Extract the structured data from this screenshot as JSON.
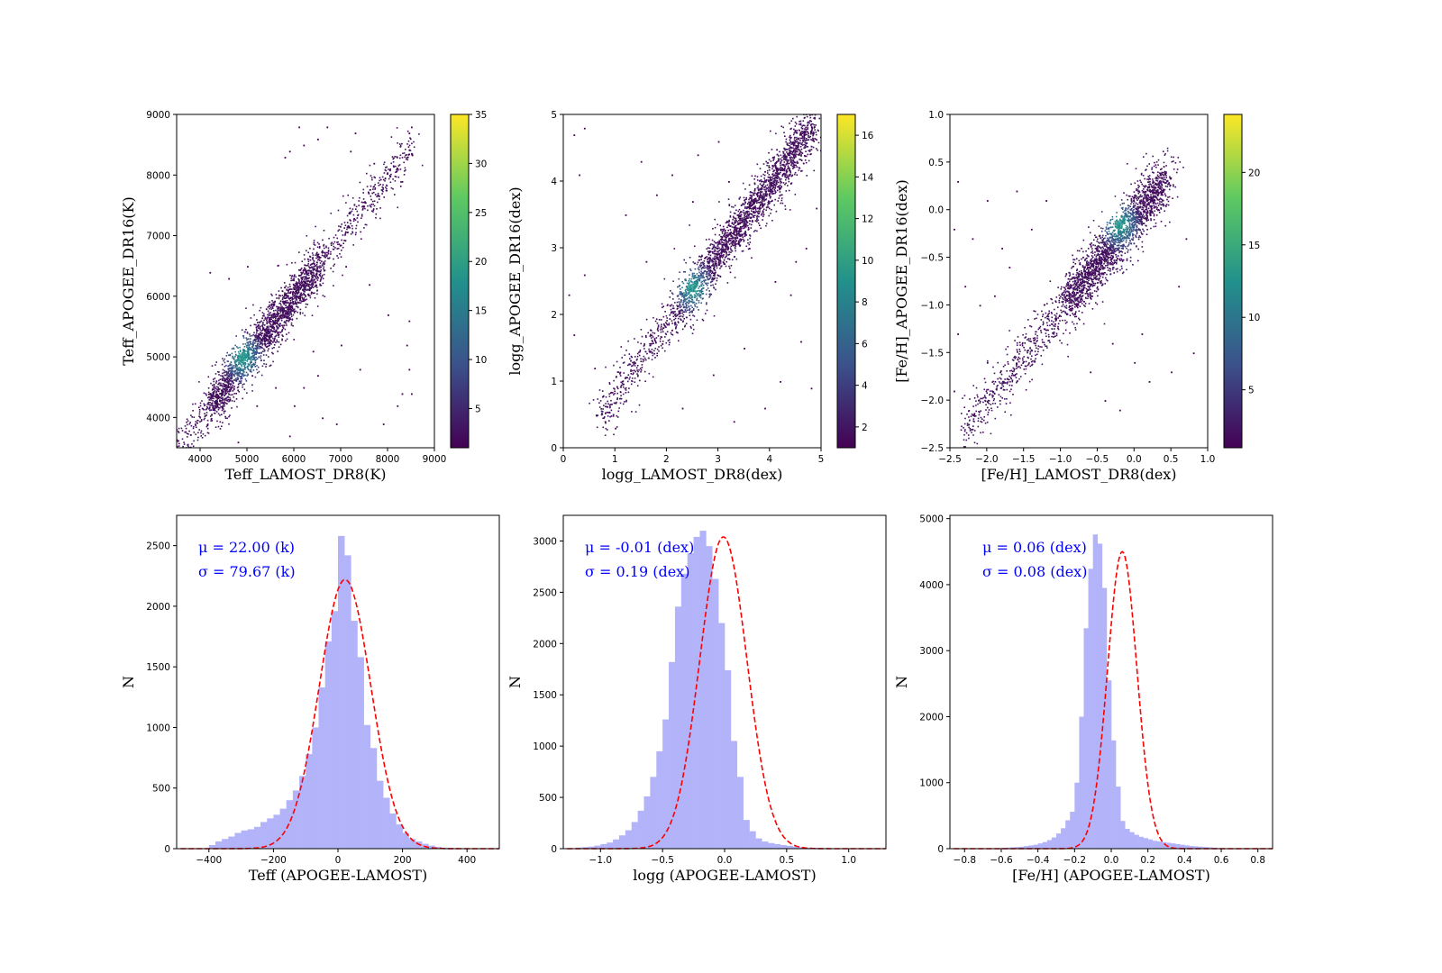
{
  "chart_data": [
    {
      "type": "scatter",
      "panel": "density",
      "xlabel": "Teff_LAMOST_DR8(K)",
      "ylabel": "Teff_APOGEE_DR16(K)",
      "xlim": [
        3500,
        9000
      ],
      "ylim": [
        3500,
        9000
      ],
      "xticks": [
        4000,
        5000,
        6000,
        7000,
        8000,
        9000
      ],
      "xtick_labels": [
        "4000",
        "5000",
        "6000",
        "7000",
        "8000",
        "9000"
      ],
      "yticks": [
        4000,
        5000,
        6000,
        7000,
        8000,
        9000
      ],
      "ytick_labels": [
        "4000",
        "5000",
        "6000",
        "7000",
        "8000",
        "9000"
      ],
      "colorbar": {
        "range": [
          1,
          35
        ],
        "ticks": [
          5,
          10,
          15,
          20,
          25,
          30,
          35
        ],
        "tick_labels": [
          "5",
          "10",
          "15",
          "20",
          "25",
          "30",
          "35"
        ],
        "colormap": "viridis"
      },
      "trend": {
        "x": [
          3500,
          8500
        ],
        "y": [
          3500,
          8500
        ],
        "spread": 180
      },
      "dense_core": {
        "x": [
          4200,
          6600
        ],
        "peak": [
          4900,
          5000
        ]
      },
      "outliers": [
        [
          5800,
          8300
        ],
        [
          5900,
          8400
        ],
        [
          6200,
          8500
        ],
        [
          6500,
          8600
        ],
        [
          7200,
          8400
        ],
        [
          7700,
          8200
        ],
        [
          8400,
          8300
        ],
        [
          8300,
          7900
        ],
        [
          8450,
          8700
        ],
        [
          8500,
          8800
        ],
        [
          6700,
          8800
        ],
        [
          6100,
          8800
        ],
        [
          7300,
          8700
        ],
        [
          8450,
          5600
        ],
        [
          8400,
          5200
        ],
        [
          8450,
          4800
        ],
        [
          8300,
          4400
        ],
        [
          8500,
          4400
        ],
        [
          4200,
          6400
        ],
        [
          4600,
          6300
        ],
        [
          5100,
          4700
        ],
        [
          5600,
          4500
        ],
        [
          6000,
          4200
        ],
        [
          6500,
          4700
        ],
        [
          7000,
          5200
        ],
        [
          6400,
          5100
        ],
        [
          7400,
          4800
        ],
        [
          6900,
          3900
        ],
        [
          5900,
          3700
        ],
        [
          4800,
          3600
        ],
        [
          7900,
          3900
        ],
        [
          8200,
          4200
        ],
        [
          8000,
          5700
        ],
        [
          7600,
          6200
        ],
        [
          7100,
          6500
        ],
        [
          5000,
          6500
        ],
        [
          5400,
          5800
        ],
        [
          6200,
          4500
        ],
        [
          6600,
          4000
        ],
        [
          5200,
          4200
        ]
      ]
    },
    {
      "type": "scatter",
      "panel": "density",
      "xlabel": "logg_LAMOST_DR8(dex)",
      "ylabel": "logg_APOGEE_DR16(dex)",
      "xlim": [
        0,
        5
      ],
      "ylim": [
        0,
        5
      ],
      "xticks": [
        0,
        1,
        2,
        3,
        4,
        5
      ],
      "xtick_labels": [
        "0",
        "1",
        "2",
        "3",
        "4",
        "5"
      ],
      "yticks": [
        0,
        1,
        2,
        3,
        4,
        5
      ],
      "ytick_labels": [
        "0",
        "1",
        "2",
        "3",
        "4",
        "5"
      ],
      "colorbar": {
        "range": [
          1,
          17
        ],
        "ticks": [
          2,
          4,
          6,
          8,
          10,
          12,
          14,
          16
        ],
        "tick_labels": [
          "2",
          "4",
          "6",
          "8",
          "10",
          "12",
          "14",
          "16"
        ],
        "colormap": "viridis"
      },
      "trend": {
        "x": [
          0.7,
          4.9
        ],
        "y": [
          0.5,
          4.9
        ],
        "spread": 0.17
      },
      "dense_core": {
        "x": [
          2.2,
          4.8
        ],
        "peak": [
          2.5,
          2.4
        ]
      },
      "outliers": [
        [
          0.2,
          4.7
        ],
        [
          0.4,
          4.8
        ],
        [
          0.3,
          4.1
        ],
        [
          0.4,
          2.6
        ],
        [
          0.1,
          2.3
        ],
        [
          0.2,
          1.7
        ],
        [
          0.6,
          1.2
        ],
        [
          0.8,
          0.4
        ],
        [
          1.5,
          4.3
        ],
        [
          2.1,
          4.1
        ],
        [
          2.6,
          4.4
        ],
        [
          3.0,
          4.6
        ],
        [
          1.2,
          3.5
        ],
        [
          1.8,
          3.8
        ],
        [
          2.5,
          3.7
        ],
        [
          3.6,
          3.0
        ],
        [
          4.1,
          2.5
        ],
        [
          4.4,
          2.3
        ],
        [
          4.6,
          1.6
        ],
        [
          4.8,
          0.9
        ],
        [
          3.9,
          0.6
        ],
        [
          3.3,
          0.4
        ],
        [
          4.7,
          3.0
        ],
        [
          4.5,
          2.8
        ],
        [
          1.0,
          0.3
        ],
        [
          4.2,
          1.0
        ],
        [
          3.5,
          1.5
        ],
        [
          2.9,
          1.1
        ],
        [
          2.3,
          0.6
        ],
        [
          1.6,
          2.8
        ],
        [
          3.2,
          4.0
        ],
        [
          4.9,
          3.6
        ]
      ]
    },
    {
      "type": "scatter",
      "panel": "density",
      "xlabel": "[Fe/H]_LAMOST_DR8(dex)",
      "ylabel": "[Fe/H]_APOGEE_DR16(dex)",
      "xlim": [
        -2.5,
        1.0
      ],
      "ylim": [
        -2.5,
        1.0
      ],
      "xticks": [
        -2.5,
        -2.0,
        -1.5,
        -1.0,
        -0.5,
        0.0,
        0.5,
        1.0
      ],
      "xtick_labels": [
        "−2.5",
        "−2.0",
        "−1.5",
        "−1.0",
        "−0.5",
        "0.0",
        "0.5",
        "1.0"
      ],
      "yticks": [
        -2.5,
        -2.0,
        -1.5,
        -1.0,
        -0.5,
        0.0,
        0.5,
        1.0
      ],
      "ytick_labels": [
        "−2.5",
        "−2.0",
        "−1.5",
        "−1.0",
        "−0.5",
        "0.0",
        "0.5",
        "1.0"
      ],
      "colorbar": {
        "range": [
          1,
          24
        ],
        "ticks": [
          5,
          10,
          15,
          20
        ],
        "tick_labels": [
          "5",
          "10",
          "15",
          "20"
        ],
        "colormap": "viridis"
      },
      "trend": {
        "x": [
          -2.3,
          0.5
        ],
        "y": [
          -2.3,
          0.4
        ],
        "spread": 0.13
      },
      "dense_core": {
        "x": [
          -0.9,
          0.4
        ],
        "peak": [
          -0.2,
          -0.15
        ]
      },
      "outliers": [
        [
          -2.4,
          0.3
        ],
        [
          -2.45,
          -0.2
        ],
        [
          -2.3,
          -0.8
        ],
        [
          -2.4,
          -1.3
        ],
        [
          -2.2,
          -0.3
        ],
        [
          -2.0,
          0.1
        ],
        [
          -1.8,
          -0.4
        ],
        [
          -1.6,
          0.2
        ],
        [
          -1.4,
          -0.2
        ],
        [
          -1.2,
          0.1
        ],
        [
          -2.1,
          -1.0
        ],
        [
          -1.9,
          -0.9
        ],
        [
          -1.7,
          -0.6
        ],
        [
          -2.45,
          -1.9
        ],
        [
          -0.6,
          -1.7
        ],
        [
          -0.4,
          -2.0
        ],
        [
          -0.2,
          -2.1
        ],
        [
          0.0,
          -1.6
        ],
        [
          0.2,
          -1.8
        ],
        [
          0.5,
          -1.7
        ],
        [
          0.8,
          -1.5
        ],
        [
          0.6,
          -0.8
        ],
        [
          0.7,
          -0.3
        ],
        [
          0.1,
          -1.3
        ],
        [
          -0.3,
          -1.4
        ],
        [
          -2.0,
          -1.6
        ],
        [
          -2.2,
          -2.3
        ]
      ]
    },
    {
      "type": "bar",
      "panel": "histogram",
      "xlabel": "Teff (APOGEE-LAMOST)",
      "ylabel": "N",
      "xlim": [
        -500,
        500
      ],
      "ylim": [
        0,
        2750
      ],
      "xticks": [
        -400,
        -200,
        0,
        200,
        400
      ],
      "xtick_labels": [
        "−400",
        "−200",
        "0",
        "200",
        "400"
      ],
      "yticks": [
        0,
        500,
        1000,
        1500,
        2000,
        2500
      ],
      "ytick_labels": [
        "0",
        "500",
        "1000",
        "1500",
        "2000",
        "2500"
      ],
      "bins": {
        "start": -400,
        "width": 20
      },
      "values": [
        30,
        60,
        80,
        100,
        130,
        150,
        160,
        180,
        220,
        250,
        280,
        330,
        400,
        480,
        600,
        780,
        1000,
        1330,
        1710,
        1960,
        2580,
        2420,
        1880,
        1580,
        1020,
        830,
        560,
        420,
        290,
        200,
        130,
        80,
        60,
        40,
        25,
        15,
        8,
        5,
        3,
        1
      ],
      "fit": {
        "mu": 22.0,
        "sigma": 79.67,
        "peak": 2220
      },
      "annotation": [
        "μ = 22.00 (k)",
        "σ = 79.67 (k)"
      ]
    },
    {
      "type": "bar",
      "panel": "histogram",
      "xlabel": "logg (APOGEE-LAMOST)",
      "ylabel": "N",
      "xlim": [
        -1.3,
        1.3
      ],
      "ylim": [
        0,
        3250
      ],
      "xticks": [
        -1.0,
        -0.5,
        0.0,
        0.5,
        1.0
      ],
      "xtick_labels": [
        "−1.0",
        "−0.5",
        "0.0",
        "0.5",
        "1.0"
      ],
      "yticks": [
        0,
        500,
        1000,
        1500,
        2000,
        2500,
        3000
      ],
      "ytick_labels": [
        "0",
        "500",
        "1000",
        "1500",
        "2000",
        "2500",
        "3000"
      ],
      "bins": {
        "start": -1.2,
        "width": 0.05
      },
      "values": [
        10,
        15,
        20,
        30,
        45,
        60,
        90,
        130,
        180,
        260,
        370,
        510,
        700,
        950,
        1260,
        1820,
        2360,
        2680,
        2880,
        3040,
        3100,
        2950,
        2630,
        2200,
        1740,
        1050,
        700,
        280,
        170,
        100,
        70,
        55,
        45,
        35,
        28,
        20,
        15,
        10,
        8,
        5,
        4,
        3,
        2,
        1,
        1,
        1,
        1,
        1
      ],
      "fit": {
        "mu": -0.01,
        "sigma": 0.19,
        "peak": 3040
      },
      "annotation": [
        "μ = -0.01 (dex)",
        "σ = 0.19 (dex)"
      ]
    },
    {
      "type": "bar",
      "panel": "histogram",
      "xlabel": "[Fe/H] (APOGEE-LAMOST)",
      "ylabel": "N",
      "xlim": [
        -0.88,
        0.88
      ],
      "ylim": [
        0,
        5050
      ],
      "xticks": [
        -0.8,
        -0.6,
        -0.4,
        -0.2,
        0.0,
        0.2,
        0.4,
        0.6,
        0.8
      ],
      "xtick_labels": [
        "−0.8",
        "−0.6",
        "−0.4",
        "−0.2",
        "0.0",
        "0.2",
        "0.4",
        "0.6",
        "0.8"
      ],
      "yticks": [
        0,
        1000,
        2000,
        3000,
        4000,
        5000
      ],
      "ytick_labels": [
        "0",
        "1000",
        "2000",
        "3000",
        "4000",
        "5000"
      ],
      "bins": {
        "start": -0.6,
        "width": 0.025
      },
      "values": [
        12,
        16,
        20,
        25,
        30,
        40,
        50,
        60,
        80,
        100,
        130,
        170,
        230,
        310,
        430,
        560,
        1000,
        2000,
        3340,
        4240,
        4760,
        4620,
        3950,
        2550,
        1640,
        940,
        420,
        300,
        250,
        210,
        180,
        160,
        140,
        120,
        110,
        100,
        90,
        80,
        70,
        60,
        50,
        40,
        35,
        30,
        25,
        20,
        15,
        10
      ],
      "fit": {
        "mu": 0.06,
        "sigma": 0.08,
        "peak": 4500
      },
      "annotation": [
        "μ = 0.06 (dex)",
        "σ = 0.08 (dex)"
      ]
    }
  ],
  "colors": {
    "hist_fill": "#b3b3fa",
    "fit_line": "#ff0000",
    "annotation_text": "#0000ff",
    "viridis": [
      "#440154",
      "#3b528b",
      "#21918c",
      "#5ec962",
      "#fde725"
    ]
  }
}
